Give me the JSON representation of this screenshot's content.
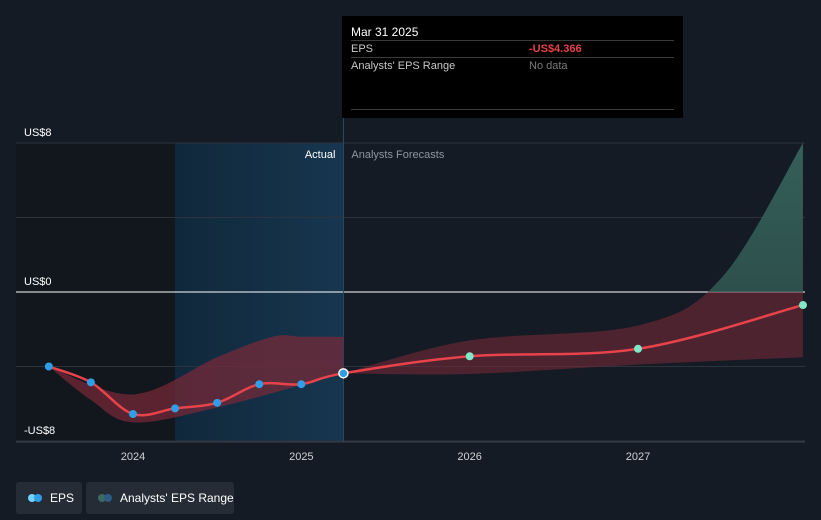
{
  "chart_data": {
    "type": "line",
    "y_axis": {
      "labels": [
        "US$8",
        "US$0",
        "-US$8"
      ],
      "values": [
        8,
        0,
        -8
      ],
      "ylim": [
        -8,
        8
      ]
    },
    "x_axis": {
      "tick_labels": [
        "2024",
        "2025",
        "2026",
        "2027"
      ],
      "tick_values": [
        2024,
        2025,
        2026,
        2027
      ],
      "xlim": [
        2023.3,
        2027.98
      ]
    },
    "section_labels": {
      "actual": "Actual",
      "forecast": "Analysts Forecasts"
    },
    "forecast_start": 2025.25,
    "highlight_start": 2024.25,
    "series": [
      {
        "name": "EPS",
        "color": "#e8424a",
        "actual_points": [
          {
            "x": 2023.5,
            "y": -4.0
          },
          {
            "x": 2023.75,
            "y": -4.85
          },
          {
            "x": 2024.0,
            "y": -6.55
          },
          {
            "x": 2024.25,
            "y": -6.25
          },
          {
            "x": 2024.5,
            "y": -5.95
          },
          {
            "x": 2024.75,
            "y": -4.95
          },
          {
            "x": 2025.0,
            "y": -4.95
          },
          {
            "x": 2025.25,
            "y": -4.366
          }
        ],
        "forecast_points": [
          {
            "x": 2026.0,
            "y": -3.45
          },
          {
            "x": 2027.0,
            "y": -3.05
          },
          {
            "x": 2027.98,
            "y": -0.7
          }
        ]
      }
    ],
    "range": {
      "name": "Analysts' EPS Range",
      "actual_upper": [
        {
          "x": 2023.5,
          "y": -4.0
        },
        {
          "x": 2024.0,
          "y": -5.5
        },
        {
          "x": 2024.5,
          "y": -3.5
        },
        {
          "x": 2024.83,
          "y": -2.4
        },
        {
          "x": 2025.0,
          "y": -2.4
        },
        {
          "x": 2025.25,
          "y": -2.4
        }
      ],
      "actual_lower": [
        {
          "x": 2025.25,
          "y": -4.366
        },
        {
          "x": 2024.5,
          "y": -6.2
        },
        {
          "x": 2024.0,
          "y": -7.0
        },
        {
          "x": 2023.75,
          "y": -5.8
        },
        {
          "x": 2023.5,
          "y": -4.0
        }
      ],
      "forecast_upper": [
        {
          "x": 2025.25,
          "y": -4.366
        },
        {
          "x": 2026.0,
          "y": -2.6
        },
        {
          "x": 2027.0,
          "y": -1.8
        },
        {
          "x": 2027.5,
          "y": 0.8
        },
        {
          "x": 2027.98,
          "y": 8.0
        }
      ],
      "forecast_lower": [
        {
          "x": 2027.98,
          "y": -3.5
        },
        {
          "x": 2027.0,
          "y": -3.9
        },
        {
          "x": 2026.0,
          "y": -4.4
        },
        {
          "x": 2025.25,
          "y": -4.366
        }
      ]
    },
    "colors": {
      "line": "#e8424a",
      "actual_dot": "#2f9ee8",
      "forecast_dot": "#7ee8c8",
      "range_fill": "#7a2a38",
      "range_fill_positive": "#3a6b63",
      "highlight": "#13324a",
      "zero_line": "#ffffff",
      "grid": "#2c333d"
    }
  },
  "tooltip": {
    "date": "Mar 31 2025",
    "rows": [
      {
        "label": "EPS",
        "value": "-US$4.366",
        "value_color": "#e8424a"
      },
      {
        "label": "Analysts' EPS Range",
        "value": "No data",
        "value_color": "#7a7a7a"
      }
    ]
  },
  "legend": {
    "items": [
      {
        "label": "EPS",
        "colors": [
          "#6fd3ff",
          "#2f9ee8"
        ]
      },
      {
        "label": "Analysts' EPS Range",
        "colors": [
          "#3a6b63",
          "#2e5a86"
        ]
      }
    ]
  }
}
